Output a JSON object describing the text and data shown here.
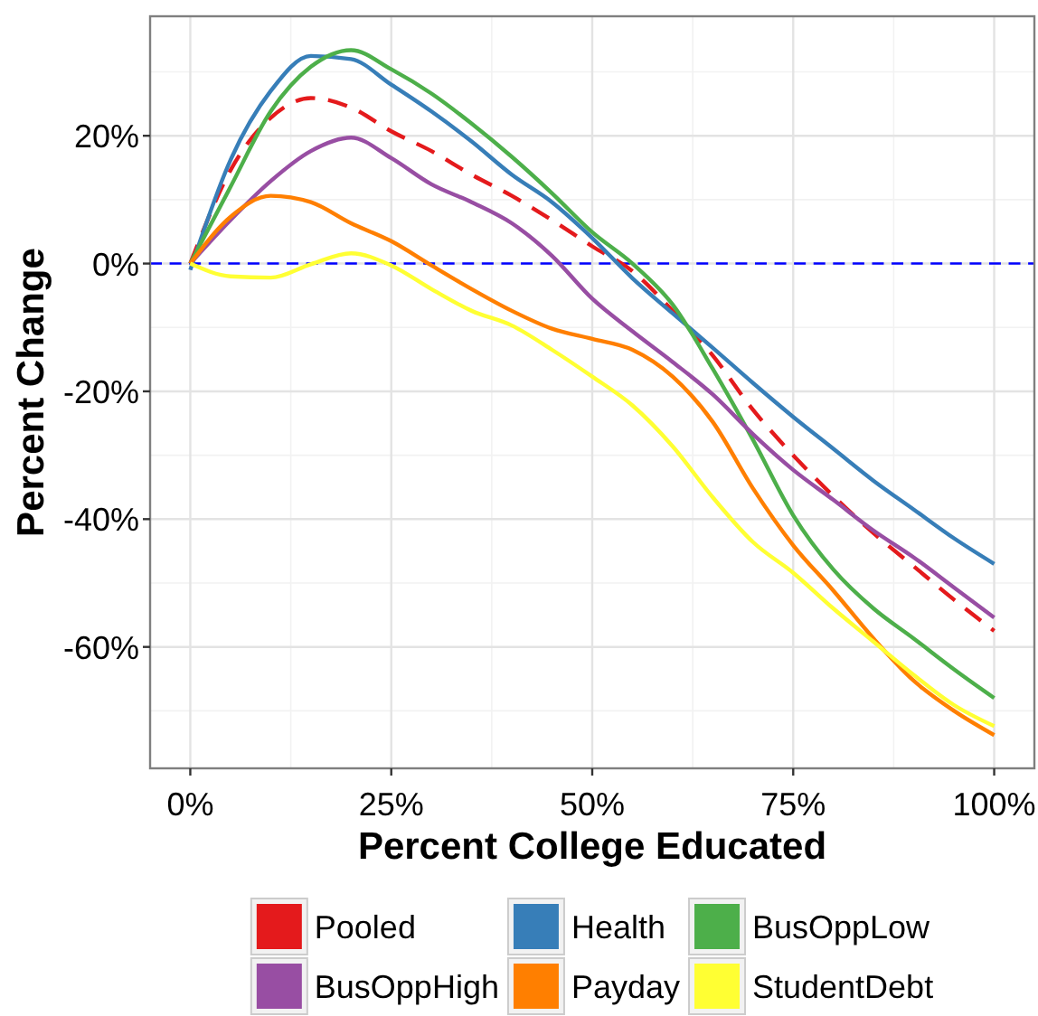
{
  "chart_data": {
    "type": "line",
    "xlabel": "Percent College Educated",
    "ylabel": "Percent Change",
    "x": [
      0,
      5,
      10,
      15,
      20,
      25,
      30,
      35,
      40,
      45,
      50,
      55,
      60,
      65,
      70,
      75,
      80,
      85,
      90,
      95,
      100
    ],
    "series": [
      {
        "name": "Pooled",
        "color": "#e41a1c",
        "line_style": "dashed",
        "values": [
          0,
          14.6,
          22.8,
          25.9,
          24.4,
          20.7,
          17.6,
          13.9,
          10.6,
          6.8,
          2.7,
          -1.2,
          -7.4,
          -14.4,
          -22.9,
          -30,
          -36.4,
          -42.2,
          -47.4,
          -52.6,
          -57.5
        ]
      },
      {
        "name": "Health",
        "color": "#377eb8",
        "values": [
          -1,
          16.2,
          27,
          32.5,
          32,
          28,
          23.8,
          19.1,
          13.9,
          9.6,
          4,
          -2.3,
          -7.8,
          -13.2,
          -18.7,
          -24,
          -29,
          -34,
          -38.5,
          -43,
          -47
        ]
      },
      {
        "name": "BusOppLow",
        "color": "#4daf4a",
        "values": [
          0,
          12,
          23.8,
          30.8,
          33.4,
          30.4,
          26.6,
          21.9,
          16.7,
          11,
          4.9,
          0,
          -6.4,
          -16.5,
          -27.6,
          -39.4,
          -47.9,
          -54,
          -58.7,
          -63.5,
          -68
        ]
      },
      {
        "name": "BusOppHigh",
        "color": "#984ea3",
        "values": [
          0,
          6.8,
          12.9,
          17.6,
          19.7,
          16.5,
          12.4,
          9.6,
          6.3,
          1.2,
          -5.5,
          -10.6,
          -15.4,
          -20.5,
          -26.7,
          -32.3,
          -37,
          -41.8,
          -46,
          -50.7,
          -55.4
        ]
      },
      {
        "name": "Payday",
        "color": "#ff7f00",
        "values": [
          0,
          7.3,
          10.6,
          9.6,
          6.3,
          3.5,
          -0.3,
          -4,
          -7.4,
          -10.2,
          -11.8,
          -13.5,
          -17.7,
          -24.8,
          -35.2,
          -44.1,
          -51.2,
          -58.7,
          -65.3,
          -70,
          -73.8
        ]
      },
      {
        "name": "StudentDebt",
        "color": "#ffff33",
        "values": [
          0,
          -2,
          -2.2,
          -0.1,
          1.6,
          -0.3,
          -4,
          -7.4,
          -9.7,
          -13.5,
          -17.7,
          -22.2,
          -28.6,
          -36.6,
          -43.6,
          -48.4,
          -54,
          -59.2,
          -64.4,
          -69.1,
          -72.4
        ]
      }
    ],
    "xlim": [
      -5,
      105
    ],
    "ylim": [
      -79,
      38.7
    ],
    "xticks": [
      {
        "value": 0,
        "label": "0%"
      },
      {
        "value": 25,
        "label": "25%"
      },
      {
        "value": 50,
        "label": "50%"
      },
      {
        "value": 75,
        "label": "75%"
      },
      {
        "value": 100,
        "label": "100%"
      }
    ],
    "yticks": [
      {
        "value": -60,
        "label": "-60%"
      },
      {
        "value": -40,
        "label": "-40%"
      },
      {
        "value": -20,
        "label": "-20%"
      },
      {
        "value": 0,
        "label": "0%"
      },
      {
        "value": 20,
        "label": "20%"
      }
    ],
    "ref_lines": [
      {
        "axis": "y",
        "value": 0,
        "color": "#0000ff",
        "line_style": "dashed"
      }
    ],
    "grid": true,
    "legend": "bottom"
  }
}
